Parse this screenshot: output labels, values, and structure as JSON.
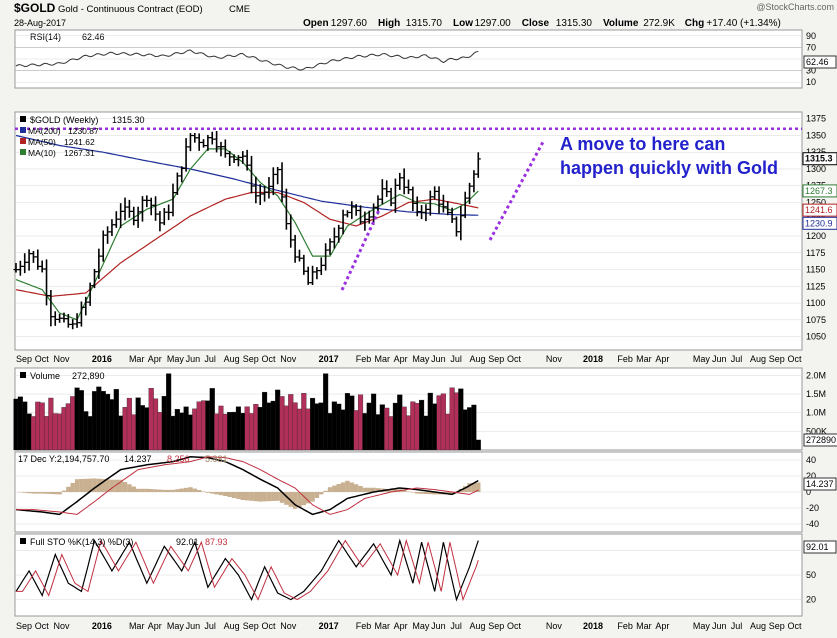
{
  "header": {
    "symbol": "$GOLD",
    "name": "Gold - Continuous Contract (EOD)",
    "exchange": "CME",
    "date": "28-Aug-2017",
    "watermark": "@StockCharts.com",
    "ohlc_line": [
      {
        "label": "Open",
        "value": "1297.60"
      },
      {
        "label": "High",
        "value": "1315.70"
      },
      {
        "label": "Low",
        "value": "1297.00"
      },
      {
        "label": "Close",
        "value": "1315.30"
      },
      {
        "label": "Volume",
        "value": "272.9K"
      },
      {
        "label": "Chg",
        "value": "+17.40 (+1.34%)"
      }
    ]
  },
  "colors": {
    "background": "#f3f3f0",
    "panel": "#ffffff",
    "grid": "#d8d8d8",
    "price_bar": "#000000",
    "ma200": "#1f2f9a",
    "ma50": "#b22222",
    "ma10": "#2e7d32",
    "annotation": "#2222cc",
    "dotted_line": "#9b30e0",
    "vol_up": "#000000",
    "vol_down": "#b0305a",
    "macd_hist": "#c8b090",
    "signal": "#c03040"
  },
  "annotation": {
    "line1": "A move to here can",
    "line2": "happen quickly with Gold",
    "resistance_level": 1360
  },
  "rsi": {
    "label": "RSI(14)",
    "value": "62.46",
    "ticks": [
      "90",
      "70",
      "50",
      "30",
      "10"
    ]
  },
  "price": {
    "legend": [
      {
        "label": "$GOLD (Weekly)",
        "value": "1315.30"
      },
      {
        "label": "MA(200)",
        "value": "1230.87"
      },
      {
        "label": "MA(50)",
        "value": "1241.62"
      },
      {
        "label": "MA(10)",
        "value": "1267.31"
      }
    ],
    "ticks": [
      "1375",
      "1350",
      "1325",
      "1300",
      "1275",
      "1250",
      "1225",
      "1200",
      "1175",
      "1150",
      "1125",
      "1100",
      "1075",
      "1050"
    ],
    "tags": [
      "1315.3",
      "1267.3",
      "1241.6",
      "1230.9"
    ]
  },
  "volume": {
    "label": "Volume",
    "value": "272,890",
    "ticks": [
      "2.0M",
      "1.5M",
      "1.0M",
      "500K"
    ],
    "tag": "272890"
  },
  "macd": {
    "label": "17 Dec Y:2,194,757.70",
    "values": [
      "14.237",
      "8.256",
      "5.981"
    ],
    "ticks": [
      "40",
      "20",
      "0",
      "-20",
      "-40"
    ],
    "tag": "14.237"
  },
  "sto": {
    "label": "Full STO %K(14,3) %D(3)",
    "values": [
      "92.01",
      "87.93"
    ],
    "ticks": [
      "80",
      "50",
      "20"
    ],
    "tag": "92.01"
  },
  "x_axis": [
    {
      "t": 0,
      "label": "Sep"
    },
    {
      "t": 4.3,
      "label": "Oct"
    },
    {
      "t": 8.6,
      "label": "Nov"
    },
    {
      "t": 17.4,
      "label": "2016"
    },
    {
      "t": 25.9,
      "label": "Mar"
    },
    {
      "t": 30.2,
      "label": "Apr"
    },
    {
      "t": 34.6,
      "label": "May"
    },
    {
      "t": 38.9,
      "label": "Jun"
    },
    {
      "t": 43.2,
      "label": "Jul"
    },
    {
      "t": 47.6,
      "label": "Aug"
    },
    {
      "t": 52,
      "label": "Sep"
    },
    {
      "t": 56.3,
      "label": "Oct"
    },
    {
      "t": 60.6,
      "label": "Nov"
    },
    {
      "t": 69.4,
      "label": "2017"
    },
    {
      "t": 77.9,
      "label": "Feb"
    },
    {
      "t": 82.2,
      "label": "Mar"
    },
    {
      "t": 86.6,
      "label": "Apr"
    },
    {
      "t": 90.9,
      "label": "May"
    },
    {
      "t": 95.2,
      "label": "Jun"
    },
    {
      "t": 99.6,
      "label": "Jul"
    },
    {
      "t": 104,
      "label": "Aug"
    },
    {
      "t": 108.3,
      "label": "Sep"
    },
    {
      "t": 112.6,
      "label": "Oct"
    },
    {
      "t": 121.5,
      "label": "Nov"
    },
    {
      "t": 130,
      "label": "2018"
    },
    {
      "t": 137.9,
      "label": "Feb"
    },
    {
      "t": 142.2,
      "label": "Mar"
    },
    {
      "t": 146.6,
      "label": "Apr"
    },
    {
      "t": 155.2,
      "label": "May"
    },
    {
      "t": 159.6,
      "label": "Jun"
    },
    {
      "t": 163.9,
      "label": "Jul"
    },
    {
      "t": 168.3,
      "label": "Aug"
    },
    {
      "t": 172.6,
      "label": "Sep"
    },
    {
      "t": 176.9,
      "label": "Oct"
    }
  ],
  "chart_data": {
    "type": "bar",
    "period": "weekly",
    "price_range": [
      1030,
      1385
    ],
    "close_anchors": [
      [
        0,
        1150
      ],
      [
        3,
        1175
      ],
      [
        6,
        1150
      ],
      [
        8,
        1085
      ],
      [
        11,
        1070
      ],
      [
        13,
        1065
      ],
      [
        16,
        1100
      ],
      [
        20,
        1195
      ],
      [
        24,
        1240
      ],
      [
        27,
        1230
      ],
      [
        30,
        1260
      ],
      [
        33,
        1220
      ],
      [
        35,
        1240
      ],
      [
        37,
        1285
      ],
      [
        40,
        1350
      ],
      [
        43,
        1340
      ],
      [
        45,
        1350
      ],
      [
        48,
        1320
      ],
      [
        52,
        1320
      ],
      [
        55,
        1260
      ],
      [
        58,
        1270
      ],
      [
        60,
        1300
      ],
      [
        62,
        1215
      ],
      [
        64,
        1175
      ],
      [
        67,
        1130
      ],
      [
        70,
        1160
      ],
      [
        73,
        1200
      ],
      [
        75,
        1235
      ],
      [
        77,
        1240
      ],
      [
        79,
        1225
      ],
      [
        81,
        1235
      ],
      [
        83,
        1255
      ],
      [
        84,
        1265
      ],
      [
        86,
        1255
      ],
      [
        88,
        1290
      ],
      [
        90,
        1265
      ],
      [
        92,
        1230
      ],
      [
        94,
        1245
      ],
      [
        96,
        1265
      ],
      [
        98,
        1240
      ],
      [
        100,
        1220
      ],
      [
        101,
        1210
      ],
      [
        103,
        1255
      ],
      [
        105,
        1295
      ],
      [
        106,
        1315
      ]
    ],
    "ma_anchors": {
      "ma200": [
        [
          0,
          1350
        ],
        [
          10,
          1335
        ],
        [
          20,
          1325
        ],
        [
          30,
          1312
        ],
        [
          40,
          1300
        ],
        [
          50,
          1285
        ],
        [
          60,
          1268
        ],
        [
          70,
          1252
        ],
        [
          80,
          1243
        ],
        [
          90,
          1236
        ],
        [
          100,
          1232
        ],
        [
          106,
          1231
        ]
      ],
      "ma50": [
        [
          0,
          1120
        ],
        [
          8,
          1110
        ],
        [
          16,
          1115
        ],
        [
          24,
          1160
        ],
        [
          32,
          1195
        ],
        [
          40,
          1230
        ],
        [
          48,
          1255
        ],
        [
          54,
          1265
        ],
        [
          60,
          1265
        ],
        [
          66,
          1250
        ],
        [
          72,
          1225
        ],
        [
          78,
          1215
        ],
        [
          84,
          1230
        ],
        [
          90,
          1250
        ],
        [
          96,
          1255
        ],
        [
          100,
          1250
        ],
        [
          106,
          1242
        ]
      ],
      "ma10": [
        [
          0,
          1135
        ],
        [
          6,
          1120
        ],
        [
          10,
          1085
        ],
        [
          14,
          1075
        ],
        [
          18,
          1130
        ],
        [
          24,
          1215
        ],
        [
          30,
          1240
        ],
        [
          36,
          1255
        ],
        [
          40,
          1300
        ],
        [
          44,
          1330
        ],
        [
          48,
          1330
        ],
        [
          52,
          1310
        ],
        [
          56,
          1280
        ],
        [
          60,
          1260
        ],
        [
          64,
          1220
        ],
        [
          68,
          1170
        ],
        [
          72,
          1170
        ],
        [
          76,
          1215
        ],
        [
          82,
          1240
        ],
        [
          88,
          1262
        ],
        [
          92,
          1250
        ],
        [
          96,
          1248
        ],
        [
          100,
          1238
        ],
        [
          103,
          1248
        ],
        [
          106,
          1267
        ]
      ]
    },
    "rsi_anchors": [
      [
        0,
        38
      ],
      [
        10,
        42
      ],
      [
        16,
        55
      ],
      [
        22,
        60
      ],
      [
        28,
        58
      ],
      [
        34,
        55
      ],
      [
        40,
        64
      ],
      [
        46,
        52
      ],
      [
        52,
        58
      ],
      [
        58,
        44
      ],
      [
        62,
        36
      ],
      [
        66,
        32
      ],
      [
        72,
        46
      ],
      [
        78,
        54
      ],
      [
        84,
        58
      ],
      [
        90,
        52
      ],
      [
        94,
        56
      ],
      [
        98,
        46
      ],
      [
        100,
        50
      ],
      [
        103,
        52
      ],
      [
        106,
        62
      ]
    ],
    "macd_anchors": [
      [
        0,
        -22
      ],
      [
        6,
        -25
      ],
      [
        10,
        -28
      ],
      [
        14,
        -12
      ],
      [
        18,
        5
      ],
      [
        24,
        28
      ],
      [
        30,
        34
      ],
      [
        36,
        38
      ],
      [
        40,
        44
      ],
      [
        44,
        43
      ],
      [
        48,
        38
      ],
      [
        52,
        28
      ],
      [
        56,
        16
      ],
      [
        60,
        5
      ],
      [
        64,
        -16
      ],
      [
        68,
        -28
      ],
      [
        72,
        -22
      ],
      [
        76,
        -8
      ],
      [
        82,
        0
      ],
      [
        88,
        5
      ],
      [
        92,
        3
      ],
      [
        96,
        0
      ],
      [
        100,
        -3
      ],
      [
        103,
        5
      ],
      [
        106,
        14.237
      ]
    ],
    "sto_anchors": [
      [
        0,
        30
      ],
      [
        3,
        55
      ],
      [
        6,
        25
      ],
      [
        9,
        75
      ],
      [
        12,
        40
      ],
      [
        15,
        30
      ],
      [
        18,
        92
      ],
      [
        22,
        55
      ],
      [
        26,
        90
      ],
      [
        30,
        40
      ],
      [
        34,
        85
      ],
      [
        38,
        55
      ],
      [
        41,
        90
      ],
      [
        44,
        35
      ],
      [
        48,
        70
      ],
      [
        51,
        50
      ],
      [
        54,
        20
      ],
      [
        57,
        60
      ],
      [
        60,
        28
      ],
      [
        63,
        20
      ],
      [
        66,
        30
      ],
      [
        70,
        55
      ],
      [
        74,
        92
      ],
      [
        78,
        60
      ],
      [
        82,
        88
      ],
      [
        86,
        50
      ],
      [
        88,
        92
      ],
      [
        91,
        40
      ],
      [
        93,
        90
      ],
      [
        96,
        30
      ],
      [
        98,
        90
      ],
      [
        101,
        20
      ],
      [
        104,
        60
      ],
      [
        106,
        92
      ]
    ]
  }
}
